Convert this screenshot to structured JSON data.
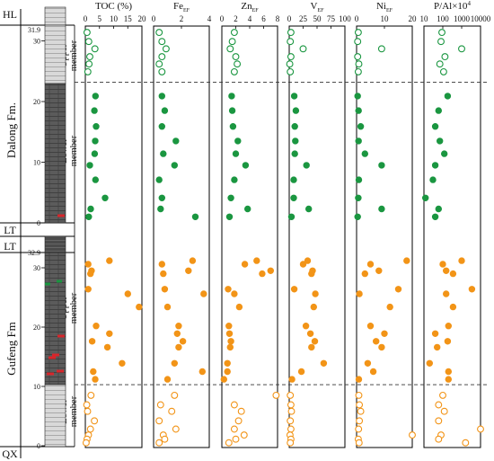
{
  "chart_data": {
    "type": "scatter",
    "stratigraphy": {
      "formations": [
        {
          "label": "HL",
          "range": [
            31.9,
            33.0
          ]
        },
        {
          "label": "Dalong Fm.",
          "range": [
            -0.6,
            23.2
          ]
        },
        {
          "label": "LT",
          "range": [
            -2.2,
            -0.6
          ]
        },
        {
          "label": "LT",
          "range": [
            33.6,
            35.3
          ]
        },
        {
          "label": "Gufeng Fm",
          "range": [
            -0.4,
            33.0
          ]
        },
        {
          "label": "QX",
          "range": [
            -2.0,
            -0.4
          ]
        }
      ],
      "members": [
        {
          "label": "Upper member",
          "range": [
            23.2,
            31.9
          ]
        },
        {
          "label": "Lower member",
          "range": [
            -0.6,
            23.2
          ]
        },
        {
          "label": "Upper member",
          "range": [
            10.3,
            33.0
          ]
        },
        {
          "label": "Lower member",
          "range": [
            -0.4,
            10.3
          ]
        }
      ]
    },
    "sections": [
      {
        "id": "Dalong",
        "depth_ticks": [
          0,
          10,
          20,
          30
        ],
        "top_label": "31.9",
        "boundary_depth": 23.2,
        "series": [
          {
            "member": "upper",
            "style": "open",
            "color": "#1a9640",
            "depth": [
              31.4,
              29.9,
              28.7,
              27.4,
              26.2,
              24.9
            ],
            "TOC": [
              0.6,
              1.2,
              3.4,
              1.6,
              1.3,
              0.9
            ],
            "Fe": [
              0.4,
              0.6,
              0.9,
              0.6,
              0.4,
              0.6
            ],
            "Zn": [
              1.8,
              1.5,
              1.2,
              2.0,
              2.2,
              1.8
            ],
            "V": [
              3,
              2,
              25,
              3,
              1,
              2
            ],
            "Ni": [
              0.6,
              0.4,
              9,
              0.4,
              0.8,
              0.6
            ],
            "PAl": [
              90,
              80,
              1000,
              130,
              70,
              110
            ]
          },
          {
            "member": "lower",
            "style": "filled",
            "color": "#1a9640",
            "depth": [
              20.9,
              18.5,
              15.9,
              13.5,
              11.4,
              9.5,
              7.1,
              4.1,
              2.3,
              1.0
            ],
            "TOC": [
              3.6,
              3.2,
              3.8,
              3.5,
              3.3,
              1.6,
              3.6,
              7.0,
              1.9,
              1.2
            ],
            "Fe": [
              0.6,
              0.8,
              0.6,
              1.6,
              0.7,
              1.5,
              0.4,
              0.6,
              0.5,
              3.0
            ],
            "Zn": [
              1.4,
              1.5,
              1.6,
              2.3,
              2.0,
              3.4,
              1.8,
              1.3,
              3.7,
              1.1
            ],
            "V": [
              9,
              12,
              10,
              11,
              10,
              31,
              8,
              8,
              35,
              4
            ],
            "Ni": [
              0.4,
              0.7,
              1.5,
              0.7,
              3,
              9,
              0.8,
              0.6,
              9,
              0.4
            ],
            "PAl": [
              180,
              60,
              40,
              70,
              120,
              40,
              30,
              12,
              60,
              40
            ]
          }
        ]
      },
      {
        "id": "Gufeng",
        "depth_ticks": [
          0,
          10,
          20,
          30
        ],
        "top_label": "32.9",
        "boundary_depth": 10.3,
        "series": [
          {
            "member": "upper",
            "style": "filled",
            "color": "#f29417",
            "depth": [
              31.2,
              30.6,
              29.5,
              29.0,
              26.4,
              25.6,
              23.4,
              20.2,
              18.9,
              17.6,
              16.6,
              13.9,
              12.5,
              11.2
            ],
            "TOC": [
              8.5,
              1.0,
              2.2,
              1.8,
              1.0,
              15,
              19,
              3.8,
              8.5,
              2.4,
              7.8,
              13,
              2.8,
              3.5
            ],
            "Fe": [
              2.8,
              0.6,
              2.5,
              0.7,
              0.8,
              3.6,
              1.0,
              1.8,
              1.7,
              2.1,
              1.8,
              1.5,
              3.5,
              1.0
            ],
            "Zn": [
              5.0,
              3.3,
              7.0,
              5.8,
              0.9,
              1.8,
              2.5,
              1.0,
              1.1,
              1.3,
              1.2,
              0.8,
              0.8,
              0.3
            ],
            "V": [
              33,
              25,
              42,
              40,
              9,
              47,
              44,
              30,
              38,
              46,
              40,
              62,
              22,
              5
            ],
            "Ni": [
              18,
              5,
              8,
              3,
              15,
              1.0,
              12,
              5,
              10,
              7,
              9,
              4,
              6,
              0.8
            ],
            "PAl": [
              1000,
              100,
              150,
              350,
              3500,
              150,
              350,
              200,
              40,
              180,
              50,
              20,
              200,
              200
            ]
          },
          {
            "member": "lower",
            "style": "open",
            "color": "#f29417",
            "depth": [
              8.5,
              6.9,
              5.8,
              4.2,
              2.8,
              1.8,
              1.1,
              0.5
            ],
            "TOC": [
              2.0,
              0.5,
              0.8,
              3.2,
              1.8,
              1.1,
              0.6,
              0.3
            ],
            "Fe": [
              1.5,
              0.5,
              1.3,
              0.4,
              1.6,
              0.7,
              0.8,
              0.4
            ],
            "Zn": [
              7.8,
              1.8,
              2.8,
              2.4,
              1.8,
              3.2,
              2.0,
              1.0
            ],
            "V": [
              2,
              3,
              4,
              2,
              3,
              1.5,
              3,
              2
            ],
            "Ni": [
              0.8,
              1.0,
              1.5,
              1.0,
              0.7,
              20,
              0.6,
              0.9
            ],
            "PAl": [
              100,
              60,
              120,
              60,
              10000,
              80,
              60,
              1600
            ]
          }
        ]
      }
    ],
    "panels": [
      {
        "key": "TOC",
        "title": "TOC (%)",
        "scale": "linear",
        "domain": [
          0,
          20
        ],
        "ticks": [
          "0",
          "5",
          "10",
          "15",
          "20"
        ]
      },
      {
        "key": "Fe",
        "title": "Fe",
        "subscript": "EF",
        "scale": "linear",
        "domain": [
          0,
          4
        ],
        "ticks": [
          "0",
          "2",
          "4"
        ]
      },
      {
        "key": "Zn",
        "title": "Zn",
        "subscript": "EF",
        "scale": "linear",
        "domain": [
          0,
          8
        ],
        "ticks": [
          "0",
          "2",
          "4",
          "6",
          "8"
        ]
      },
      {
        "key": "V",
        "title": "V",
        "subscript": "EF",
        "scale": "linear",
        "domain": [
          0,
          100
        ],
        "ticks": [
          "0",
          "25",
          "50",
          "75",
          "100"
        ]
      },
      {
        "key": "Ni",
        "title": "Ni",
        "subscript": "EF",
        "scale": "linear",
        "domain": [
          0,
          20
        ],
        "ticks": [
          "0",
          "10",
          "20"
        ]
      },
      {
        "key": "PAl",
        "title": "P/Al×10",
        "superscript": "4",
        "scale": "log",
        "domain": [
          10,
          10000
        ],
        "ticks": [
          "10",
          "100",
          "1000",
          "10000"
        ]
      }
    ],
    "grid": false,
    "legend": "none"
  }
}
